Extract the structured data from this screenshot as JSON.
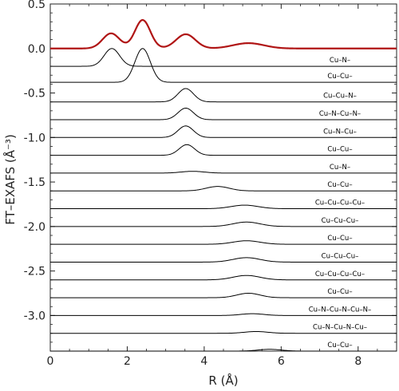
{
  "chart_data": {
    "type": "line",
    "xlabel": "R (Å)",
    "ylabel": "FT–EXAFS (Å⁻³)",
    "xlim": [
      0,
      9
    ],
    "ylim": [
      -3.4,
      0.5
    ],
    "x_ticks": [
      0,
      2,
      4,
      6,
      8
    ],
    "y_ticks": [
      0.5,
      0.0,
      -0.5,
      -1.0,
      -1.5,
      -2.0,
      -2.5,
      -3.0
    ],
    "grid": false,
    "colors": {
      "total": "#b01515",
      "path": "#000000",
      "axis": "#222222"
    },
    "total": {
      "baseline": 0.0,
      "peaks": [
        {
          "center": 1.58,
          "height": 0.17,
          "width": 0.22
        },
        {
          "center": 2.4,
          "height": 0.32,
          "width": 0.2
        },
        {
          "center": 3.52,
          "height": 0.16,
          "width": 0.25
        },
        {
          "center": 5.15,
          "height": 0.06,
          "width": 0.4
        }
      ]
    },
    "series": [
      {
        "name": "Cu–N–",
        "baseline": -0.2,
        "center": 1.6,
        "height": 0.2,
        "width": 0.2,
        "label_lines": [
          "Cu–N–"
        ]
      },
      {
        "name": "Cu–Cu–",
        "baseline": -0.38,
        "center": 2.4,
        "height": 0.38,
        "width": 0.2,
        "label_lines": [
          "Cu–Cu–"
        ]
      },
      {
        "name": "Cu–Cu–N–",
        "baseline": -0.6,
        "center": 3.52,
        "height": 0.15,
        "width": 0.2,
        "label_lines": [
          "Cu–Cu–N–"
        ]
      },
      {
        "name": "Cu–N–Cu–N–",
        "baseline": -0.8,
        "center": 3.52,
        "height": 0.13,
        "width": 0.2,
        "label_lines": [
          "Cu–N–Cu–N–"
        ]
      },
      {
        "name": "Cu–N–Cu–",
        "baseline": -1.0,
        "center": 3.52,
        "height": 0.13,
        "width": 0.2,
        "label_lines": [
          "Cu–N–Cu–"
        ]
      },
      {
        "name": "Cu–Cu–",
        "baseline": -1.2,
        "center": 3.55,
        "height": 0.12,
        "width": 0.2,
        "label_lines": [
          "Cu–Cu–"
        ]
      },
      {
        "name": "Cu–N–",
        "baseline": -1.4,
        "center": 3.7,
        "height": 0.02,
        "width": 0.3,
        "label_lines": [
          "Cu–N–"
        ]
      },
      {
        "name": "Cu–Cu–",
        "baseline": -1.6,
        "center": 4.35,
        "height": 0.05,
        "width": 0.3,
        "label_lines": [
          "Cu–Cu–"
        ]
      },
      {
        "name": "Cu–Cu–Cu–Cu–",
        "baseline": -1.8,
        "center": 5.05,
        "height": 0.04,
        "width": 0.35,
        "label_lines": [
          "Cu–Cu–Cu–Cu–"
        ]
      },
      {
        "name": "Cu–Cu–Cu–",
        "baseline": -2.0,
        "center": 5.1,
        "height": 0.05,
        "width": 0.35,
        "label_lines": [
          "Cu–Cu–Cu–"
        ]
      },
      {
        "name": "Cu–Cu–",
        "baseline": -2.2,
        "center": 5.1,
        "height": 0.04,
        "width": 0.35,
        "label_lines": [
          "Cu–Cu–"
        ]
      },
      {
        "name": "Cu–Cu–Cu–",
        "baseline": -2.4,
        "center": 5.1,
        "height": 0.05,
        "width": 0.35,
        "label_lines": [
          "Cu–Cu–Cu–"
        ]
      },
      {
        "name": "Cu–Cu–Cu–Cu–",
        "baseline": -2.6,
        "center": 5.1,
        "height": 0.05,
        "width": 0.35,
        "label_lines": [
          "Cu–Cu–Cu–Cu–"
        ]
      },
      {
        "name": "Cu–Cu–",
        "baseline": -2.8,
        "center": 5.15,
        "height": 0.05,
        "width": 0.3,
        "label_lines": [
          "Cu–Cu–"
        ]
      },
      {
        "name": "Cu–N–Cu–N–Cu–N–",
        "baseline": -3.0,
        "center": 5.25,
        "height": 0.02,
        "width": 0.3,
        "label_lines": [
          "Cu–N–Cu–N–Cu–N–"
        ]
      },
      {
        "name": "Cu–N–Cu–N–Cu–",
        "baseline": -3.2,
        "center": 5.35,
        "height": 0.02,
        "width": 0.3,
        "label_lines": [
          "Cu–N–Cu–N–Cu–"
        ]
      },
      {
        "name": "Cu–Cu–",
        "baseline": -3.4,
        "center": 5.7,
        "height": 0.02,
        "width": 0.3,
        "label_lines": [
          "Cu–Cu–"
        ]
      }
    ]
  }
}
